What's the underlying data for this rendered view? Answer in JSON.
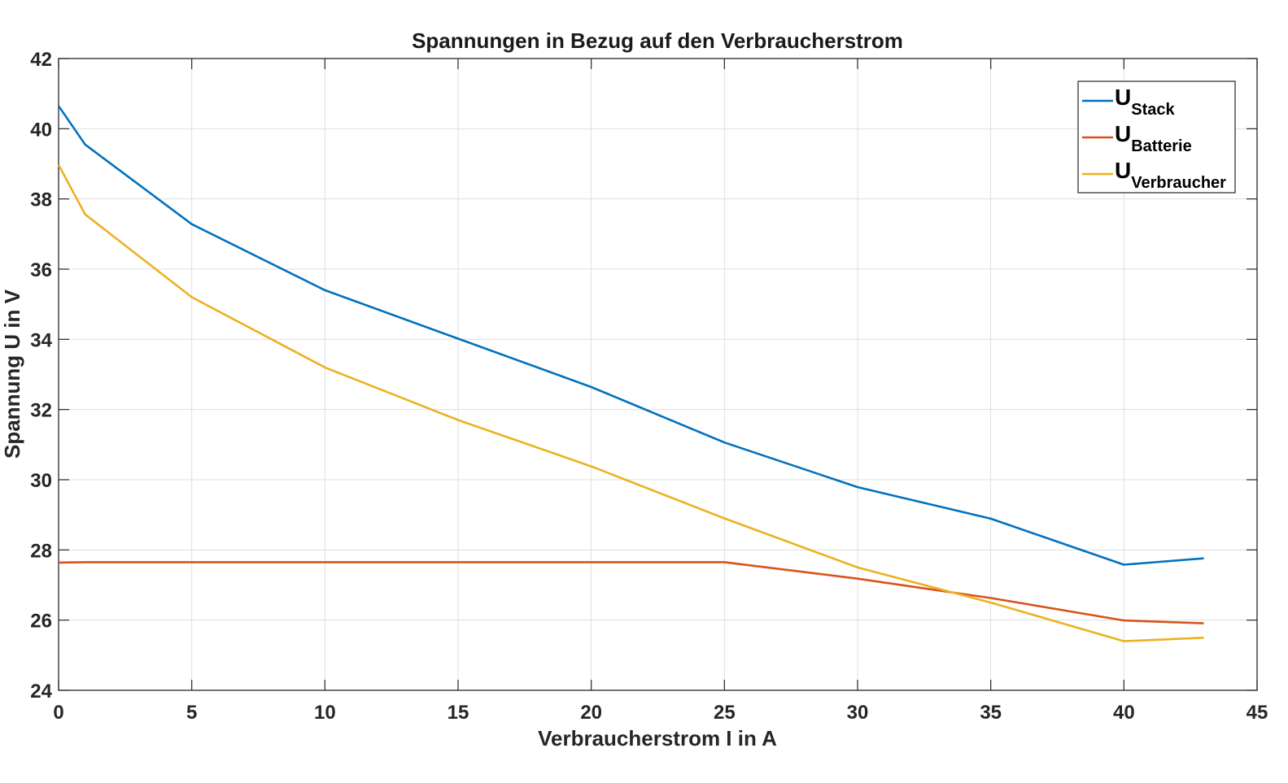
{
  "chart_data": {
    "type": "line",
    "title": "Spannungen in Bezug auf den Verbraucherstrom",
    "xlabel": "Verbraucherstrom I in A",
    "ylabel": "Spannung U in V",
    "xlim": [
      0,
      45
    ],
    "ylim": [
      24,
      42
    ],
    "xticks": [
      0,
      5,
      10,
      15,
      20,
      25,
      30,
      35,
      40,
      45
    ],
    "yticks": [
      24,
      26,
      28,
      30,
      32,
      34,
      36,
      38,
      40,
      42
    ],
    "grid": true,
    "legend_position": "top-right",
    "x": [
      0,
      1,
      5,
      10,
      15,
      20,
      25,
      30,
      35,
      40,
      43
    ],
    "series": [
      {
        "name": "U",
        "subscript": "Stack",
        "color": "#0072BD",
        "values": [
          40.65,
          39.55,
          37.28,
          35.4,
          34.02,
          32.64,
          31.06,
          29.79,
          28.89,
          27.58,
          27.76
        ]
      },
      {
        "name": "U",
        "subscript": "Batterie",
        "color": "#D95319",
        "values": [
          27.64,
          27.65,
          27.65,
          27.65,
          27.65,
          27.65,
          27.65,
          27.18,
          26.63,
          25.99,
          25.91
        ]
      },
      {
        "name": "U",
        "subscript": "Verbraucher",
        "color": "#EDB120",
        "values": [
          38.97,
          37.56,
          35.2,
          33.2,
          31.7,
          30.38,
          28.9,
          27.5,
          26.5,
          25.4,
          25.5
        ]
      }
    ]
  }
}
